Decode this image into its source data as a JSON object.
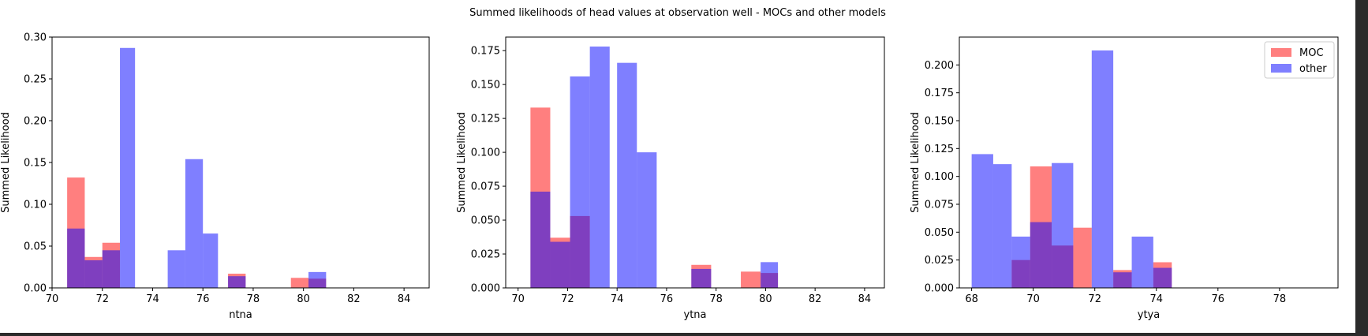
{
  "figure": {
    "title": "Summed likelihoods of head values at observation well - MOCs and other models"
  },
  "colors": {
    "moc": "#ff0000",
    "other": "#0000ff",
    "overlap": "#7f2fbf",
    "background": "#2b2b2b",
    "figure_bg": "#ffffff"
  },
  "chart_data": [
    {
      "type": "bar",
      "subtype": "histogram",
      "xlabel": "ntna",
      "ylabel": "Summed Likelihood",
      "xlim": [
        70,
        85
      ],
      "ylim": [
        0,
        0.3
      ],
      "xticks": [
        70,
        72,
        74,
        76,
        78,
        80,
        82,
        84
      ],
      "yticks": [
        0.0,
        0.05,
        0.1,
        0.15,
        0.2,
        0.25,
        0.3
      ],
      "ytick_labels": [
        "0.00",
        "0.05",
        "0.10",
        "0.15",
        "0.20",
        "0.25",
        "0.30"
      ],
      "grid": false,
      "series": [
        {
          "name": "MOC",
          "bins": [
            {
              "x0": 70.6,
              "x1": 71.3,
              "value": 0.132
            },
            {
              "x0": 71.3,
              "x1": 72.0,
              "value": 0.037
            },
            {
              "x0": 72.0,
              "x1": 72.7,
              "value": 0.054
            },
            {
              "x0": 77.0,
              "x1": 77.7,
              "value": 0.017
            },
            {
              "x0": 79.5,
              "x1": 80.2,
              "value": 0.012
            },
            {
              "x0": 80.2,
              "x1": 80.9,
              "value": 0.011
            }
          ]
        },
        {
          "name": "other",
          "bins": [
            {
              "x0": 70.6,
              "x1": 71.3,
              "value": 0.071
            },
            {
              "x0": 71.3,
              "x1": 72.0,
              "value": 0.033
            },
            {
              "x0": 72.0,
              "x1": 72.7,
              "value": 0.045
            },
            {
              "x0": 72.7,
              "x1": 73.3,
              "value": 0.287
            },
            {
              "x0": 74.6,
              "x1": 75.3,
              "value": 0.045
            },
            {
              "x0": 75.3,
              "x1": 76.0,
              "value": 0.154
            },
            {
              "x0": 76.0,
              "x1": 76.6,
              "value": 0.065
            },
            {
              "x0": 77.0,
              "x1": 77.7,
              "value": 0.014
            },
            {
              "x0": 80.2,
              "x1": 80.9,
              "value": 0.019
            }
          ]
        }
      ]
    },
    {
      "type": "bar",
      "subtype": "histogram",
      "xlabel": "ytna",
      "ylabel": "Summed Likelihood",
      "xlim": [
        69.5,
        84.8
      ],
      "ylim": [
        0,
        0.185
      ],
      "xticks": [
        70,
        72,
        74,
        76,
        78,
        80,
        82,
        84
      ],
      "yticks": [
        0.0,
        0.025,
        0.05,
        0.075,
        0.1,
        0.125,
        0.15,
        0.175
      ],
      "ytick_labels": [
        "0.000",
        "0.025",
        "0.050",
        "0.075",
        "0.100",
        "0.125",
        "0.150",
        "0.175"
      ],
      "grid": false,
      "series": [
        {
          "name": "MOC",
          "bins": [
            {
              "x0": 70.5,
              "x1": 71.3,
              "value": 0.133
            },
            {
              "x0": 71.3,
              "x1": 72.1,
              "value": 0.037
            },
            {
              "x0": 72.1,
              "x1": 72.9,
              "value": 0.053
            },
            {
              "x0": 77.0,
              "x1": 77.8,
              "value": 0.017
            },
            {
              "x0": 79.0,
              "x1": 79.8,
              "value": 0.012
            },
            {
              "x0": 79.8,
              "x1": 80.5,
              "value": 0.011
            }
          ]
        },
        {
          "name": "other",
          "bins": [
            {
              "x0": 70.5,
              "x1": 71.3,
              "value": 0.071
            },
            {
              "x0": 71.3,
              "x1": 72.1,
              "value": 0.034
            },
            {
              "x0": 72.1,
              "x1": 72.9,
              "value": 0.156
            },
            {
              "x0": 72.9,
              "x1": 73.7,
              "value": 0.178
            },
            {
              "x0": 74.0,
              "x1": 74.8,
              "value": 0.166
            },
            {
              "x0": 74.8,
              "x1": 75.6,
              "value": 0.1
            },
            {
              "x0": 77.0,
              "x1": 77.8,
              "value": 0.014
            },
            {
              "x0": 79.8,
              "x1": 80.5,
              "value": 0.019
            }
          ]
        }
      ]
    },
    {
      "type": "bar",
      "subtype": "histogram",
      "xlabel": "ytya",
      "ylabel": "Summed Likelihood",
      "xlim": [
        67.6,
        79.9
      ],
      "ylim": [
        0,
        0.225
      ],
      "xticks": [
        68,
        70,
        72,
        74,
        76,
        78
      ],
      "yticks": [
        0.0,
        0.025,
        0.05,
        0.075,
        0.1,
        0.125,
        0.15,
        0.175,
        0.2
      ],
      "ytick_labels": [
        "0.000",
        "0.025",
        "0.050",
        "0.075",
        "0.100",
        "0.125",
        "0.150",
        "0.175",
        "0.200"
      ],
      "grid": false,
      "legend": {
        "position": "top-right",
        "entries": [
          "MOC",
          "other"
        ]
      },
      "series": [
        {
          "name": "MOC",
          "bins": [
            {
              "x0": 69.3,
              "x1": 69.9,
              "value": 0.025
            },
            {
              "x0": 69.9,
              "x1": 70.6,
              "value": 0.109
            },
            {
              "x0": 70.6,
              "x1": 71.3,
              "value": 0.038
            },
            {
              "x0": 71.3,
              "x1": 71.9,
              "value": 0.054
            },
            {
              "x0": 72.6,
              "x1": 73.2,
              "value": 0.016
            },
            {
              "x0": 73.9,
              "x1": 74.5,
              "value": 0.023
            }
          ]
        },
        {
          "name": "other",
          "bins": [
            {
              "x0": 68.0,
              "x1": 68.7,
              "value": 0.12
            },
            {
              "x0": 68.7,
              "x1": 69.3,
              "value": 0.111
            },
            {
              "x0": 69.3,
              "x1": 69.9,
              "value": 0.046
            },
            {
              "x0": 69.9,
              "x1": 70.6,
              "value": 0.059
            },
            {
              "x0": 70.6,
              "x1": 71.3,
              "value": 0.112
            },
            {
              "x0": 71.9,
              "x1": 72.6,
              "value": 0.213
            },
            {
              "x0": 72.6,
              "x1": 73.2,
              "value": 0.014
            },
            {
              "x0": 73.2,
              "x1": 73.9,
              "value": 0.046
            },
            {
              "x0": 73.9,
              "x1": 74.5,
              "value": 0.018
            }
          ]
        }
      ]
    }
  ]
}
